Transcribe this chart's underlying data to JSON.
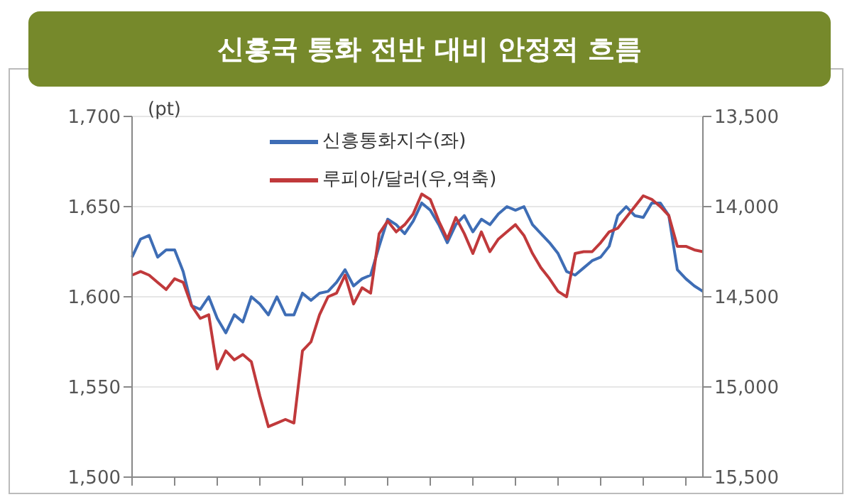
{
  "chart_data": {
    "type": "line",
    "title": "신흥국 통화 전반 대비 안정적 흐름",
    "annotations": [
      "(pt)"
    ],
    "categories": [
      null,
      null,
      null,
      null,
      null,
      null,
      null,
      null,
      null,
      null,
      null,
      null,
      null,
      null,
      null,
      null,
      null,
      null,
      null,
      null,
      null,
      null,
      null,
      null,
      null,
      null,
      null,
      null,
      null,
      null,
      null,
      null,
      null,
      null,
      null,
      null,
      null,
      null,
      null,
      null,
      null,
      null,
      null,
      null,
      null,
      null,
      null,
      null,
      null,
      null,
      null,
      null,
      null,
      null,
      null,
      null,
      null,
      null,
      null,
      null,
      null,
      null,
      null,
      null,
      null,
      null,
      null,
      null
    ],
    "series": [
      {
        "name": "신흥통화지수(좌)",
        "color": "#3e6db5",
        "values": [
          1622,
          1632,
          1634,
          1622,
          1626,
          1626,
          1614,
          1595,
          1593,
          1600,
          1588,
          1580,
          1590,
          1586,
          1600,
          1596,
          1590,
          1600,
          1590,
          1590,
          1602,
          1598,
          1602,
          1603,
          1608,
          1615,
          1606,
          1610,
          1612,
          1628,
          1643,
          1640,
          1635,
          1642,
          1652,
          1648,
          1640,
          1630,
          1640,
          1645,
          1636,
          1643,
          1640,
          1646,
          1650,
          1648,
          1650,
          1640,
          1635,
          1630,
          1624,
          1614,
          1612,
          1616,
          1620,
          1622,
          1628,
          1645,
          1650,
          1645,
          1644,
          1652,
          1652,
          1645,
          1615,
          1610,
          1606,
          1603
        ]
      },
      {
        "name": "루피아/달러(우,역축)",
        "color": "#c0393b",
        "axis": "y2",
        "values": [
          14380,
          14360,
          14380,
          14420,
          14460,
          14400,
          14420,
          14550,
          14620,
          14600,
          14900,
          14800,
          14850,
          14820,
          14860,
          15050,
          15220,
          15200,
          15180,
          15200,
          14800,
          14750,
          14600,
          14500,
          14480,
          14380,
          14540,
          14450,
          14480,
          14150,
          14080,
          14140,
          14100,
          14040,
          13930,
          13960,
          14080,
          14180,
          14060,
          14150,
          14260,
          14140,
          14250,
          14180,
          14140,
          14100,
          14160,
          14260,
          14340,
          14400,
          14470,
          14500,
          14260,
          14250,
          14250,
          14200,
          14140,
          14120,
          14060,
          14000,
          13940,
          13960,
          14000,
          14050,
          14220,
          14220,
          14240,
          14250
        ]
      }
    ],
    "ylim": [
      1500,
      1700
    ],
    "yticks": [
      {
        "value": 1500,
        "label": "1,500"
      },
      {
        "value": 1550,
        "label": "1,550"
      },
      {
        "value": 1600,
        "label": "1,600"
      },
      {
        "value": 1650,
        "label": "1,650"
      },
      {
        "value": 1700,
        "label": "1,700"
      }
    ],
    "y2lim": [
      15500,
      13500
    ],
    "y2ticks": [
      {
        "value": 13500,
        "label": "13,500"
      },
      {
        "value": 14000,
        "label": "14,000"
      },
      {
        "value": 14500,
        "label": "14,500"
      },
      {
        "value": 15000,
        "label": "15,000"
      },
      {
        "value": 15500,
        "label": "15,500"
      }
    ],
    "grid": "y",
    "legend": "top",
    "marker": "none",
    "line_style": "solid"
  }
}
